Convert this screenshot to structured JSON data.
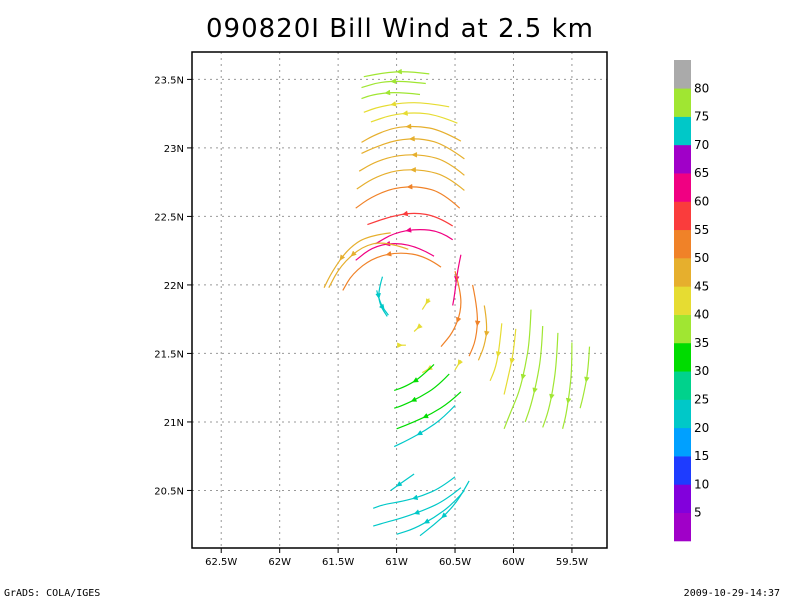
{
  "chart_data": {
    "type": "streamline",
    "title": "090820I Bill Wind at 2.5 km",
    "x_ticks": [
      "62.5W",
      "62W",
      "61.5W",
      "61W",
      "60.5W",
      "60W",
      "59.5W"
    ],
    "x_values": [
      -62.5,
      -62,
      -61.5,
      -61,
      -60.5,
      -60,
      -59.5
    ],
    "y_ticks": [
      "20.5N",
      "21N",
      "21.5N",
      "22N",
      "22.5N",
      "23N",
      "23.5N"
    ],
    "y_values": [
      20.5,
      21,
      21.5,
      22,
      22.5,
      23,
      23.5
    ],
    "xlim": [
      -62.75,
      -59.2
    ],
    "ylim": [
      20.08,
      23.7
    ],
    "grid": true,
    "colorbar": {
      "labels": [
        "5",
        "10",
        "15",
        "20",
        "25",
        "30",
        "35",
        "40",
        "45",
        "50",
        "55",
        "60",
        "65",
        "70",
        "75",
        "80"
      ],
      "colors": [
        "#a000c8",
        "#8200dc",
        "#1e3cff",
        "#00a0ff",
        "#00c8c8",
        "#00d28c",
        "#00dc00",
        "#a0e632",
        "#e6dc32",
        "#e6af2d",
        "#f08228",
        "#fa3c3c",
        "#f00082",
        "#a000c8",
        "#00c8c8",
        "#a0e632",
        "#aaaaaa"
      ]
    },
    "streamlines": [
      {
        "c": "#a0e632",
        "pts": [
          [
            -60.72,
            23.54
          ],
          [
            -60.9,
            23.56
          ],
          [
            -61.1,
            23.55
          ],
          [
            -61.28,
            23.52
          ]
        ]
      },
      {
        "c": "#a0e632",
        "pts": [
          [
            -60.75,
            23.47
          ],
          [
            -60.95,
            23.49
          ],
          [
            -61.15,
            23.48
          ],
          [
            -61.3,
            23.44
          ]
        ]
      },
      {
        "c": "#a0e632",
        "pts": [
          [
            -60.8,
            23.39
          ],
          [
            -61.0,
            23.41
          ],
          [
            -61.2,
            23.39
          ],
          [
            -61.3,
            23.36
          ]
        ]
      },
      {
        "c": "#e6dc32",
        "pts": [
          [
            -60.55,
            23.3
          ],
          [
            -60.75,
            23.33
          ],
          [
            -60.95,
            23.33
          ],
          [
            -61.15,
            23.3
          ],
          [
            -61.28,
            23.26
          ]
        ]
      },
      {
        "c": "#e6dc32",
        "pts": [
          [
            -60.48,
            23.18
          ],
          [
            -60.65,
            23.24
          ],
          [
            -60.85,
            23.26
          ],
          [
            -61.05,
            23.24
          ],
          [
            -61.22,
            23.19
          ]
        ]
      },
      {
        "c": "#e6af2d",
        "pts": [
          [
            -60.45,
            23.05
          ],
          [
            -60.62,
            23.13
          ],
          [
            -60.82,
            23.16
          ],
          [
            -61.02,
            23.15
          ],
          [
            -61.2,
            23.09
          ],
          [
            -61.3,
            23.04
          ]
        ]
      },
      {
        "c": "#e6af2d",
        "pts": [
          [
            -60.42,
            22.92
          ],
          [
            -60.58,
            23.02
          ],
          [
            -60.78,
            23.07
          ],
          [
            -61.0,
            23.06
          ],
          [
            -61.2,
            23.0
          ],
          [
            -61.3,
            22.96
          ]
        ]
      },
      {
        "c": "#e6af2d",
        "pts": [
          [
            -60.42,
            22.8
          ],
          [
            -60.56,
            22.9
          ],
          [
            -60.76,
            22.95
          ],
          [
            -60.98,
            22.95
          ],
          [
            -61.18,
            22.9
          ],
          [
            -61.32,
            22.83
          ]
        ]
      },
      {
        "c": "#e6af2d",
        "pts": [
          [
            -60.42,
            22.69
          ],
          [
            -60.56,
            22.79
          ],
          [
            -60.76,
            22.84
          ],
          [
            -61.0,
            22.84
          ],
          [
            -61.2,
            22.78
          ],
          [
            -61.34,
            22.7
          ]
        ]
      },
      {
        "c": "#f08228",
        "pts": [
          [
            -60.46,
            22.56
          ],
          [
            -60.6,
            22.67
          ],
          [
            -60.8,
            22.72
          ],
          [
            -61.02,
            22.71
          ],
          [
            -61.22,
            22.64
          ],
          [
            -61.35,
            22.56
          ]
        ]
      },
      {
        "c": "#fa3c3c",
        "pts": [
          [
            -60.52,
            22.43
          ],
          [
            -60.65,
            22.5
          ],
          [
            -60.85,
            22.53
          ],
          [
            -61.05,
            22.5
          ],
          [
            -61.25,
            22.44
          ]
        ]
      },
      {
        "c": "#f00082",
        "pts": [
          [
            -60.52,
            22.33
          ],
          [
            -60.62,
            22.39
          ],
          [
            -60.82,
            22.41
          ],
          [
            -61.02,
            22.38
          ],
          [
            -61.18,
            22.3
          ]
        ]
      },
      {
        "c": "#f00082",
        "pts": [
          [
            -60.68,
            22.21
          ],
          [
            -60.8,
            22.27
          ],
          [
            -61.0,
            22.31
          ],
          [
            -61.2,
            22.28
          ],
          [
            -61.35,
            22.18
          ]
        ]
      },
      {
        "c": "#f08228",
        "pts": [
          [
            -60.62,
            22.13
          ],
          [
            -60.75,
            22.21
          ],
          [
            -60.98,
            22.24
          ],
          [
            -61.2,
            22.2
          ],
          [
            -61.38,
            22.08
          ],
          [
            -61.46,
            21.96
          ]
        ]
      },
      {
        "c": "#e6af2d",
        "pts": [
          [
            -60.9,
            22.26
          ],
          [
            -61.1,
            22.32
          ],
          [
            -61.3,
            22.28
          ],
          [
            -61.48,
            22.14
          ],
          [
            -61.58,
            21.98
          ]
        ]
      },
      {
        "c": "#e6af2d",
        "pts": [
          [
            -61.05,
            22.38
          ],
          [
            -61.25,
            22.36
          ],
          [
            -61.42,
            22.26
          ],
          [
            -61.55,
            22.1
          ],
          [
            -61.62,
            21.98
          ]
        ]
      },
      {
        "c": "#00c8c8",
        "pts": [
          [
            -61.12,
            22.06
          ],
          [
            -61.16,
            21.95
          ],
          [
            -61.14,
            21.85
          ],
          [
            -61.08,
            21.77
          ]
        ]
      },
      {
        "c": "#00c8c8",
        "pts": [
          [
            -61.17,
            21.96
          ],
          [
            -61.14,
            21.86
          ],
          [
            -61.07,
            21.78
          ]
        ]
      },
      {
        "c": "#f00082",
        "pts": [
          [
            -60.45,
            22.22
          ],
          [
            -60.48,
            22.1
          ],
          [
            -60.5,
            21.95
          ],
          [
            -60.52,
            21.85
          ]
        ]
      },
      {
        "c": "#f08228",
        "pts": [
          [
            -60.5,
            22.1
          ],
          [
            -60.45,
            21.95
          ],
          [
            -60.45,
            21.8
          ],
          [
            -60.52,
            21.65
          ],
          [
            -60.62,
            21.55
          ]
        ]
      },
      {
        "c": "#f08228",
        "pts": [
          [
            -60.35,
            22.0
          ],
          [
            -60.3,
            21.8
          ],
          [
            -60.32,
            21.6
          ],
          [
            -60.38,
            21.48
          ]
        ]
      },
      {
        "c": "#e6af2d",
        "pts": [
          [
            -60.25,
            21.85
          ],
          [
            -60.22,
            21.7
          ],
          [
            -60.25,
            21.55
          ],
          [
            -60.3,
            21.45
          ]
        ]
      },
      {
        "c": "#e6dc32",
        "pts": [
          [
            -60.72,
            21.9
          ],
          [
            -60.78,
            21.82
          ]
        ]
      },
      {
        "c": "#e6dc32",
        "pts": [
          [
            -60.8,
            21.7
          ],
          [
            -60.85,
            21.66
          ]
        ]
      },
      {
        "c": "#e6dc32",
        "pts": [
          [
            -60.98,
            21.56
          ],
          [
            -60.92,
            21.56
          ]
        ]
      },
      {
        "c": "#e6dc32",
        "pts": [
          [
            -60.45,
            21.45
          ],
          [
            -60.5,
            21.38
          ]
        ]
      },
      {
        "c": "#e6dc32",
        "pts": [
          [
            -60.7,
            21.4
          ],
          [
            -60.78,
            21.36
          ]
        ]
      },
      {
        "c": "#e6dc32",
        "pts": [
          [
            -60.1,
            21.72
          ],
          [
            -60.12,
            21.55
          ],
          [
            -60.15,
            21.4
          ],
          [
            -60.2,
            21.3
          ]
        ]
      },
      {
        "c": "#e6dc32",
        "pts": [
          [
            -59.98,
            21.68
          ],
          [
            -60.0,
            21.5
          ],
          [
            -60.04,
            21.35
          ],
          [
            -60.08,
            21.2
          ]
        ]
      },
      {
        "c": "#a0e632",
        "pts": [
          [
            -59.85,
            21.82
          ],
          [
            -59.86,
            21.6
          ],
          [
            -59.9,
            21.4
          ],
          [
            -59.95,
            21.22
          ],
          [
            -60.02,
            21.08
          ],
          [
            -60.08,
            20.95
          ]
        ]
      },
      {
        "c": "#a0e632",
        "pts": [
          [
            -59.75,
            21.7
          ],
          [
            -59.76,
            21.5
          ],
          [
            -59.8,
            21.3
          ],
          [
            -59.85,
            21.12
          ],
          [
            -59.9,
            21.0
          ]
        ]
      },
      {
        "c": "#a0e632",
        "pts": [
          [
            -59.62,
            21.65
          ],
          [
            -59.63,
            21.45
          ],
          [
            -59.66,
            21.25
          ],
          [
            -59.7,
            21.08
          ],
          [
            -59.75,
            20.96
          ]
        ]
      },
      {
        "c": "#a0e632",
        "pts": [
          [
            -59.5,
            21.58
          ],
          [
            -59.5,
            21.4
          ],
          [
            -59.52,
            21.22
          ],
          [
            -59.55,
            21.05
          ],
          [
            -59.58,
            20.95
          ]
        ]
      },
      {
        "c": "#a0e632",
        "pts": [
          [
            -59.35,
            21.55
          ],
          [
            -59.36,
            21.38
          ],
          [
            -59.4,
            21.2
          ],
          [
            -59.43,
            21.1
          ]
        ]
      },
      {
        "c": "#00dc00",
        "pts": [
          [
            -60.68,
            21.42
          ],
          [
            -60.8,
            21.32
          ],
          [
            -60.92,
            21.26
          ],
          [
            -61.02,
            21.23
          ]
        ]
      },
      {
        "c": "#00dc00",
        "pts": [
          [
            -60.55,
            21.35
          ],
          [
            -60.65,
            21.26
          ],
          [
            -60.8,
            21.18
          ],
          [
            -60.95,
            21.12
          ],
          [
            -61.02,
            21.1
          ]
        ]
      },
      {
        "c": "#00dc00",
        "pts": [
          [
            -60.45,
            21.22
          ],
          [
            -60.55,
            21.14
          ],
          [
            -60.7,
            21.06
          ],
          [
            -60.85,
            21.0
          ],
          [
            -61.0,
            20.95
          ]
        ]
      },
      {
        "c": "#00c8c8",
        "pts": [
          [
            -60.5,
            21.12
          ],
          [
            -60.6,
            21.03
          ],
          [
            -60.75,
            20.94
          ],
          [
            -60.9,
            20.87
          ],
          [
            -61.02,
            20.82
          ]
        ]
      },
      {
        "c": "#00c8c8",
        "pts": [
          [
            -60.85,
            20.62
          ],
          [
            -60.95,
            20.56
          ],
          [
            -61.05,
            20.5
          ]
        ]
      },
      {
        "c": "#00c8c8",
        "pts": [
          [
            -60.5,
            20.6
          ],
          [
            -60.62,
            20.52
          ],
          [
            -60.78,
            20.46
          ],
          [
            -60.95,
            20.42
          ],
          [
            -61.1,
            20.4
          ],
          [
            -61.2,
            20.37
          ]
        ]
      },
      {
        "c": "#00c8c8",
        "pts": [
          [
            -60.45,
            20.52
          ],
          [
            -60.58,
            20.43
          ],
          [
            -60.75,
            20.36
          ],
          [
            -60.95,
            20.3
          ],
          [
            -61.12,
            20.26
          ],
          [
            -61.2,
            20.24
          ]
        ]
      },
      {
        "c": "#00c8c8",
        "pts": [
          [
            -60.42,
            20.5
          ],
          [
            -60.52,
            20.4
          ],
          [
            -60.68,
            20.3
          ],
          [
            -60.85,
            20.22
          ],
          [
            -61.0,
            20.18
          ]
        ]
      },
      {
        "c": "#00c8c8",
        "pts": [
          [
            -60.38,
            20.57
          ],
          [
            -60.45,
            20.46
          ],
          [
            -60.55,
            20.35
          ],
          [
            -60.68,
            20.25
          ],
          [
            -60.8,
            20.17
          ]
        ]
      }
    ]
  },
  "footer": {
    "left": "GrADS: COLA/IGES",
    "right": "2009-10-29-14:37"
  }
}
